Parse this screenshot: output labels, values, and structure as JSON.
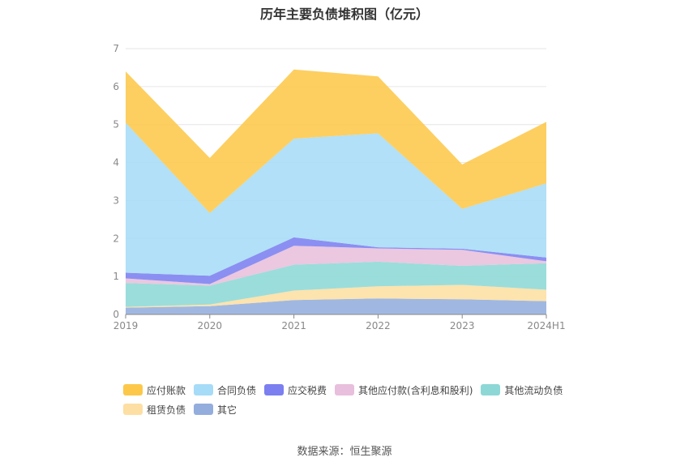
{
  "chart_data": {
    "type": "area",
    "title": "历年主要负债堆积图（亿元）",
    "categories": [
      "2019",
      "2020",
      "2021",
      "2022",
      "2023",
      "2024H1"
    ],
    "ylim": [
      0,
      7
    ],
    "yticks": [
      "0",
      "1",
      "2",
      "3",
      "4",
      "5",
      "6",
      "7"
    ],
    "grid": true,
    "legend_position": "bottom",
    "stacked": true,
    "series": [
      {
        "name": "其它",
        "color": "#93aedd",
        "values": [
          0.18,
          0.22,
          0.38,
          0.42,
          0.4,
          0.35
        ]
      },
      {
        "name": "租赁负债",
        "color": "#fddfa3",
        "values": [
          0.02,
          0.04,
          0.25,
          0.32,
          0.38,
          0.3
        ]
      },
      {
        "name": "其他流动负债",
        "color": "#8dd8d6",
        "values": [
          0.63,
          0.5,
          0.68,
          0.65,
          0.5,
          0.7
        ]
      },
      {
        "name": "其他应付款(含利息和股利)",
        "color": "#e8bfdc",
        "values": [
          0.12,
          0.04,
          0.5,
          0.35,
          0.42,
          0.05
        ]
      },
      {
        "name": "应交税费",
        "color": "#7b7ff0",
        "values": [
          0.15,
          0.22,
          0.22,
          0.03,
          0.03,
          0.1
        ]
      },
      {
        "name": "合同负债",
        "color": "#a6dcf7",
        "values": [
          3.95,
          1.65,
          2.6,
          3.0,
          1.05,
          1.95
        ]
      },
      {
        "name": "应付账款",
        "color": "#fdc84a",
        "values": [
          1.35,
          1.45,
          1.82,
          1.5,
          1.17,
          1.62
        ]
      }
    ],
    "legend_order": [
      "应付账款",
      "合同负债",
      "应交税费",
      "其他应付款(含利息和股利)",
      "其他流动负债",
      "租赁负债",
      "其它"
    ]
  },
  "source": "数据来源：恒生聚源"
}
